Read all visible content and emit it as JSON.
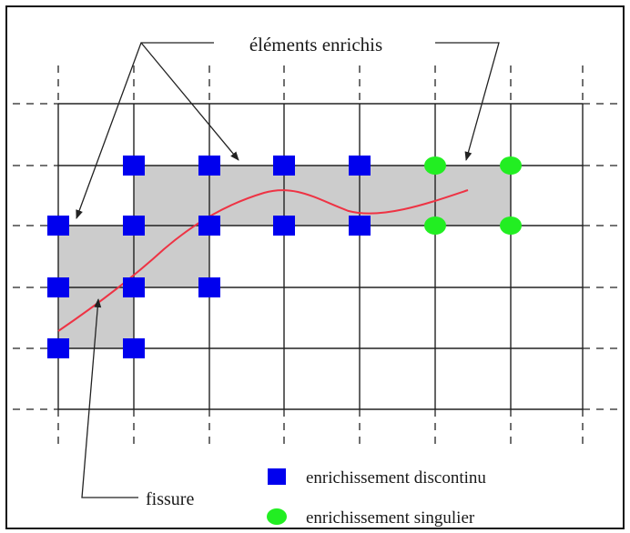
{
  "diagram": {
    "top_label": "éléments enrichis",
    "crack_label": "fissure",
    "legend": [
      {
        "marker": "square",
        "color": "#0000ee",
        "label": "enrichissement discontinu"
      },
      {
        "marker": "circle",
        "color": "#22ee22",
        "label": "enrichissement singulier"
      }
    ],
    "colors": {
      "border": "#111111",
      "grid": "#222222",
      "enriched_fill": "#cccccc",
      "crack": "#ee3344",
      "arrow": "#222222"
    }
  }
}
